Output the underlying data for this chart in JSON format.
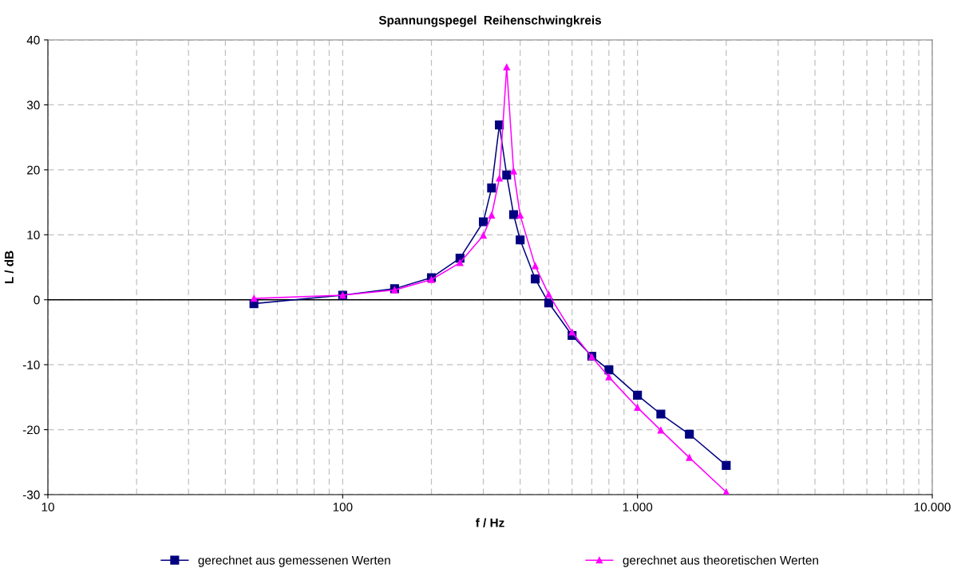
{
  "chart_data": {
    "type": "line",
    "title": "Spannungspegel  Reihenschwingkreis",
    "xlabel": "f / Hz",
    "ylabel": "L / dB",
    "log": "x",
    "xlim": [
      10,
      10000
    ],
    "xticks": [
      10,
      100,
      {
        "value": 1000,
        "label": "1.000"
      },
      {
        "value": 10000,
        "label": "10.000"
      }
    ],
    "ylim": [
      -30,
      40
    ],
    "yticks": [
      -30,
      -20,
      -10,
      0,
      10,
      20,
      30,
      40
    ],
    "grid": true,
    "legend": "bottom",
    "ref_lines": [
      {
        "axis": "y",
        "value": 0,
        "color": "#000000"
      }
    ],
    "series": [
      {
        "name": "gerechnet aus gemessenen Werten",
        "color": "#000080",
        "marker": "square",
        "x": [
          50,
          100,
          150,
          200,
          250,
          300,
          320,
          340,
          360,
          380,
          400,
          450,
          500,
          600,
          700,
          800,
          1000,
          1200,
          1500,
          2000
        ],
        "values": [
          -0.6,
          0.7,
          1.7,
          3.4,
          6.4,
          12.0,
          17.2,
          26.9,
          19.2,
          13.1,
          9.2,
          3.2,
          -0.5,
          -5.5,
          -8.7,
          -10.8,
          -14.7,
          -17.6,
          -20.7,
          -25.5
        ]
      },
      {
        "name": "gerechnet aus theoretischen Werten",
        "color": "#ff00ff",
        "marker": "triangle",
        "x": [
          50,
          100,
          150,
          200,
          250,
          300,
          320,
          340,
          360,
          380,
          400,
          450,
          500,
          600,
          700,
          800,
          1000,
          1200,
          1500,
          2000
        ],
        "values": [
          0.2,
          0.7,
          1.5,
          3.1,
          5.7,
          9.9,
          13.0,
          18.7,
          35.8,
          19.8,
          13.0,
          5.2,
          0.8,
          -5.0,
          -8.8,
          -11.9,
          -16.6,
          -20.1,
          -24.3,
          -29.6
        ]
      }
    ]
  }
}
